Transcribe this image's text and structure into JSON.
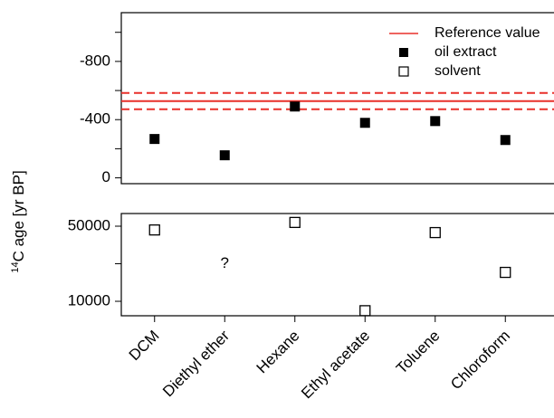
{
  "chart_data": [
    {
      "type": "errorbar",
      "ylim": [
        40,
        -1135
      ],
      "yticks": [
        0,
        -400,
        -800
      ],
      "minor_yticks": [
        -200,
        -600,
        -1000
      ],
      "reference": {
        "name": "Reference value",
        "value": -527,
        "error": 56,
        "color": "#e8302a"
      },
      "series": [
        {
          "name": "oil extract",
          "color": "#000000",
          "values": [
            -267,
            -155,
            -490,
            -378,
            -390,
            -260
          ],
          "errors": [
            15,
            12,
            22,
            15,
            15,
            16
          ]
        }
      ],
      "legend": "upper right"
    },
    {
      "type": "scatter",
      "categories": [
        "DCM",
        "Diethyl ether",
        "Hexane",
        "Ethyl acetate",
        "Toluene",
        "Chloroform"
      ],
      "ylim": [
        2300,
        56750
      ],
      "yticks": [
        10000,
        50000
      ],
      "minor_yticks": [
        30000
      ],
      "series": [
        {
          "name": "solvent",
          "color": "#000000",
          "values": [
            48000,
            null,
            52000,
            5000,
            46600,
            25400
          ]
        }
      ],
      "annotations": [
        {
          "text": "?",
          "category": "Diethyl ether",
          "value": 30000
        }
      ],
      "y_label_sup": "14",
      "y_label": "C age [yr BP]"
    }
  ]
}
